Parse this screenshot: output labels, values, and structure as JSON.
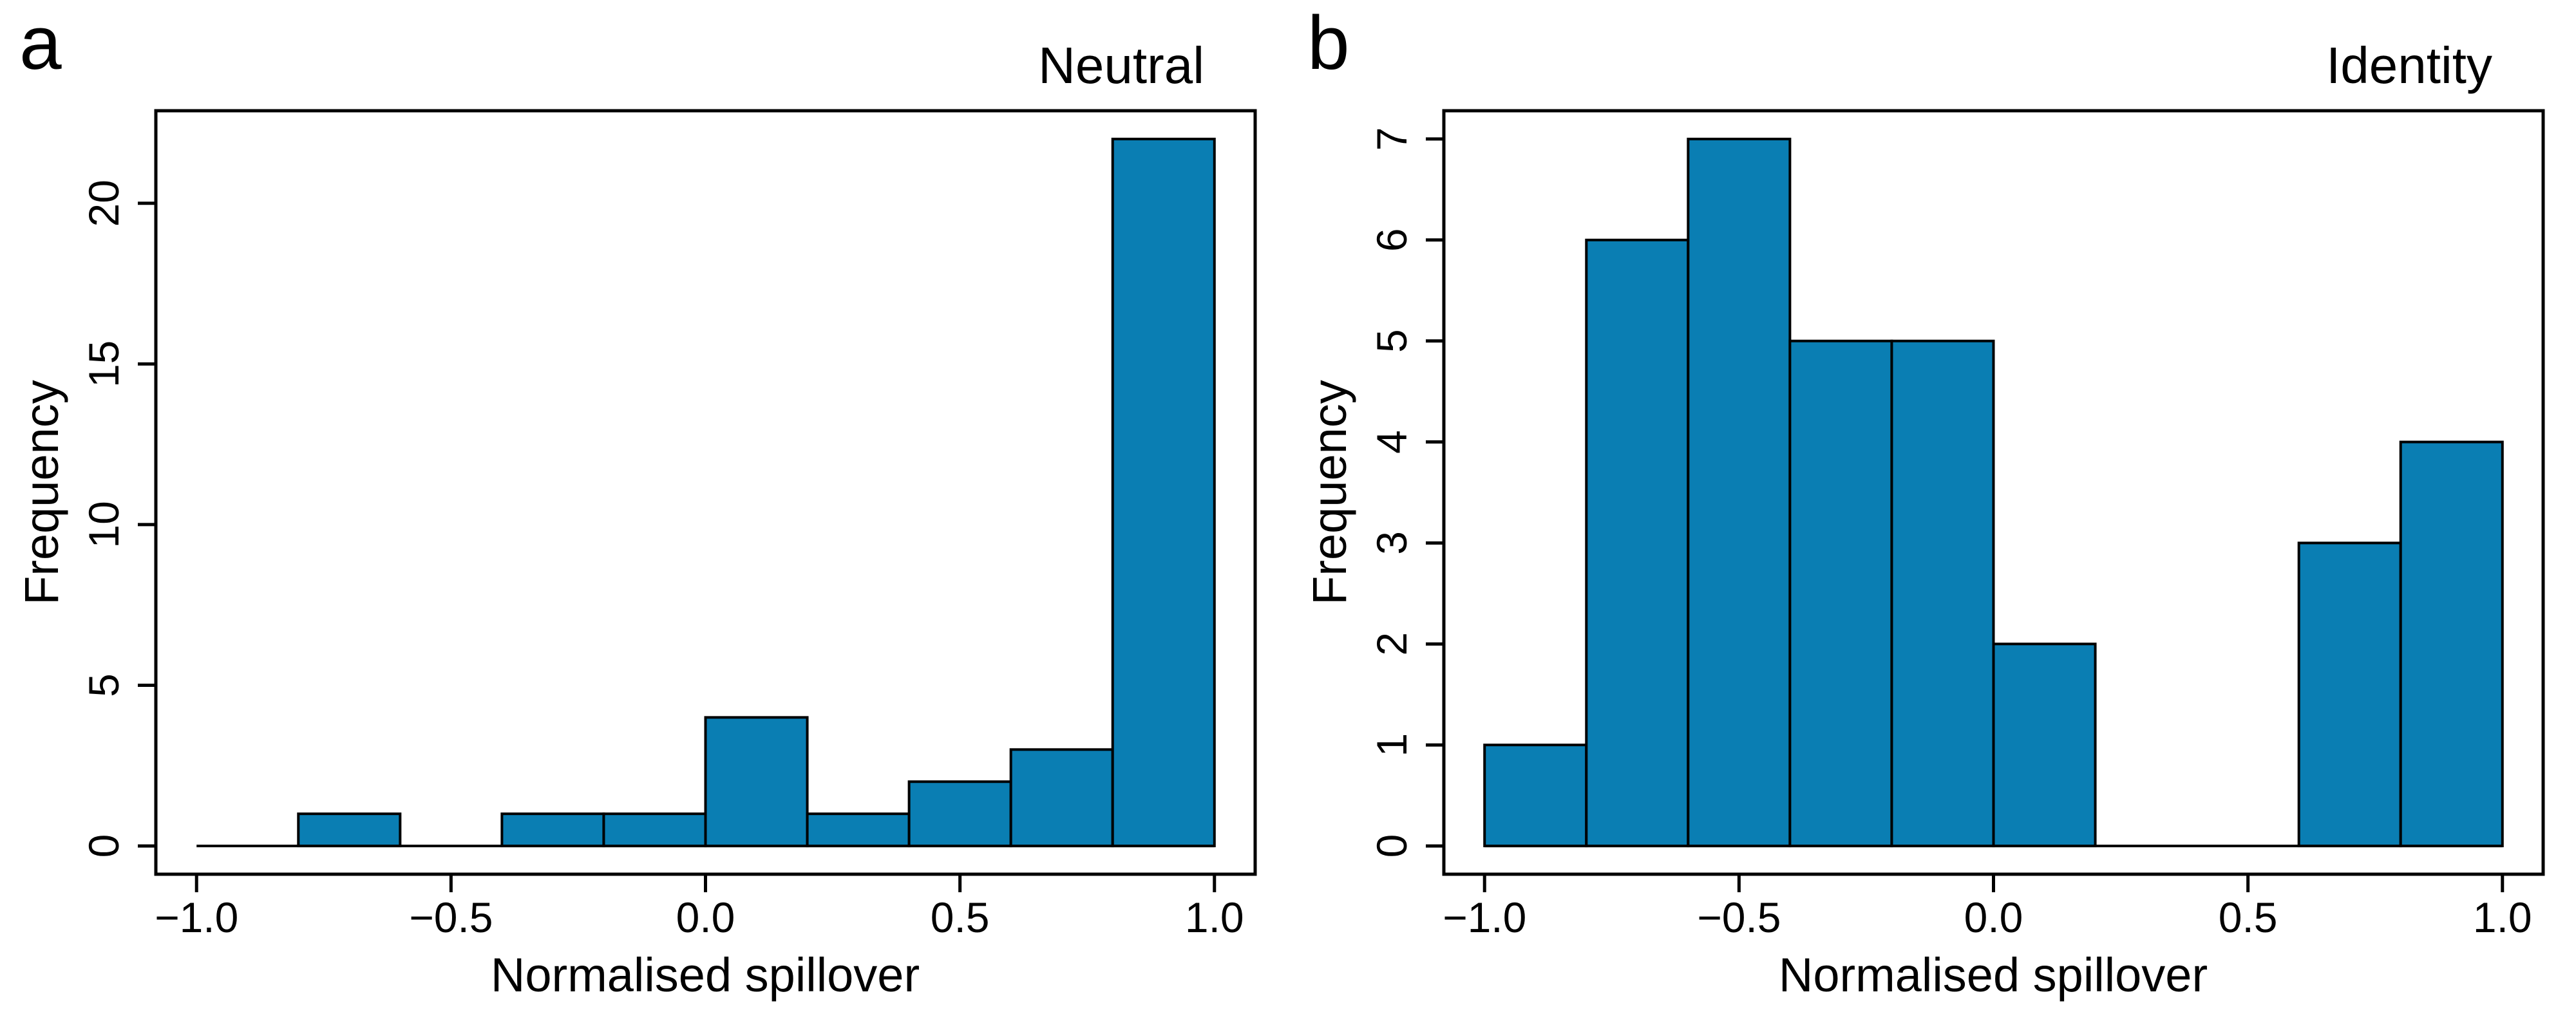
{
  "figure": {
    "background": "#ffffff",
    "bar_fill": "#0a7eb3",
    "stroke_color": "#000000"
  },
  "chart_data": [
    {
      "type": "bar",
      "subtype": "histogram",
      "panel_label": "a",
      "title": "Neutral",
      "xlabel": "Normalised spillover",
      "ylabel": "Frequency",
      "bin_width": 0.2,
      "bin_edges": [
        -1.0,
        -0.8,
        -0.6,
        -0.4,
        -0.2,
        0.0,
        0.2,
        0.4,
        0.6,
        0.8,
        1.0
      ],
      "values": [
        0,
        1,
        0,
        1,
        1,
        4,
        1,
        2,
        3,
        22
      ],
      "x_tick_values": [
        -1.0,
        -0.5,
        0.0,
        0.5,
        1.0
      ],
      "x_tick_labels": [
        "−1.0",
        "−0.5",
        "0.0",
        "0.5",
        "1.0"
      ],
      "y_tick_values": [
        0,
        5,
        10,
        15,
        20
      ],
      "y_tick_labels": [
        "0",
        "5",
        "10",
        "15",
        "20"
      ],
      "xlim": [
        -1.08,
        1.08
      ],
      "ylim": [
        -0.88,
        22.88
      ],
      "grid": false,
      "legend": null
    },
    {
      "type": "bar",
      "subtype": "histogram",
      "panel_label": "b",
      "title": "Identity",
      "xlabel": "Normalised spillover",
      "ylabel": "Frequency",
      "bin_width": 0.2,
      "bin_edges": [
        -1.0,
        -0.8,
        -0.6,
        -0.4,
        -0.2,
        0.0,
        0.2,
        0.4,
        0.6,
        0.8,
        1.0
      ],
      "values": [
        1,
        6,
        7,
        5,
        5,
        2,
        0,
        0,
        3,
        4
      ],
      "x_tick_values": [
        -1.0,
        -0.5,
        0.0,
        0.5,
        1.0
      ],
      "x_tick_labels": [
        "−1.0",
        "−0.5",
        "0.0",
        "0.5",
        "1.0"
      ],
      "y_tick_values": [
        0,
        1,
        2,
        3,
        4,
        5,
        6,
        7
      ],
      "y_tick_labels": [
        "0",
        "1",
        "2",
        "3",
        "4",
        "5",
        "6",
        "7"
      ],
      "xlim": [
        -1.08,
        1.08
      ],
      "ylim": [
        -0.28,
        7.28
      ],
      "grid": false,
      "legend": null
    }
  ]
}
